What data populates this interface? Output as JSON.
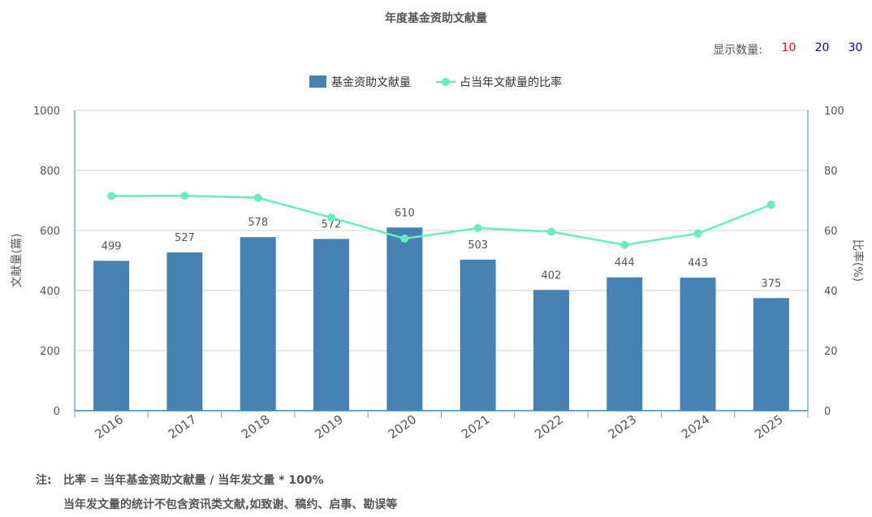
{
  "title": "年度基金资助文献量",
  "display_count": {
    "label": "显示数量:",
    "options": [
      {
        "text": "10",
        "color": "#ff0000"
      },
      {
        "text": "20",
        "color": "#0000cc"
      },
      {
        "text": "30",
        "color": "#0000cc"
      }
    ]
  },
  "notes": {
    "label": "注:",
    "line1": "比率 = 当年基金资助文献量 / 当年发文量 * 100%",
    "line2": "当年发文量的统计不包含资讯类文献,如致谢、稿约、启事、勘误等"
  },
  "chart_data": {
    "type": "bar",
    "categories": [
      "2016",
      "2017",
      "2018",
      "2019",
      "2020",
      "2021",
      "2022",
      "2023",
      "2024",
      "2025"
    ],
    "series": [
      {
        "name": "基金资助文献量",
        "type": "bar",
        "axis": "left",
        "color": "#4682b4",
        "values": [
          499,
          527,
          578,
          572,
          610,
          503,
          402,
          444,
          443,
          375
        ]
      },
      {
        "name": "占当年文献量的比率",
        "type": "line",
        "axis": "right",
        "color": "#66eebb",
        "values": [
          71.5,
          71.6,
          70.9,
          64.3,
          57.3,
          60.8,
          59.6,
          55.2,
          59.0,
          68.6
        ]
      }
    ],
    "ylabel": "文献量(篇)",
    "ylabel_right": "比率(%)",
    "ylim": [
      0,
      1000
    ],
    "ylim_right": [
      0,
      100
    ],
    "yticks": [
      0,
      200,
      400,
      600,
      800,
      1000
    ],
    "yticks_right": [
      0,
      20,
      40,
      60,
      80,
      100
    ],
    "grid": true,
    "legend_position": "top-center"
  }
}
